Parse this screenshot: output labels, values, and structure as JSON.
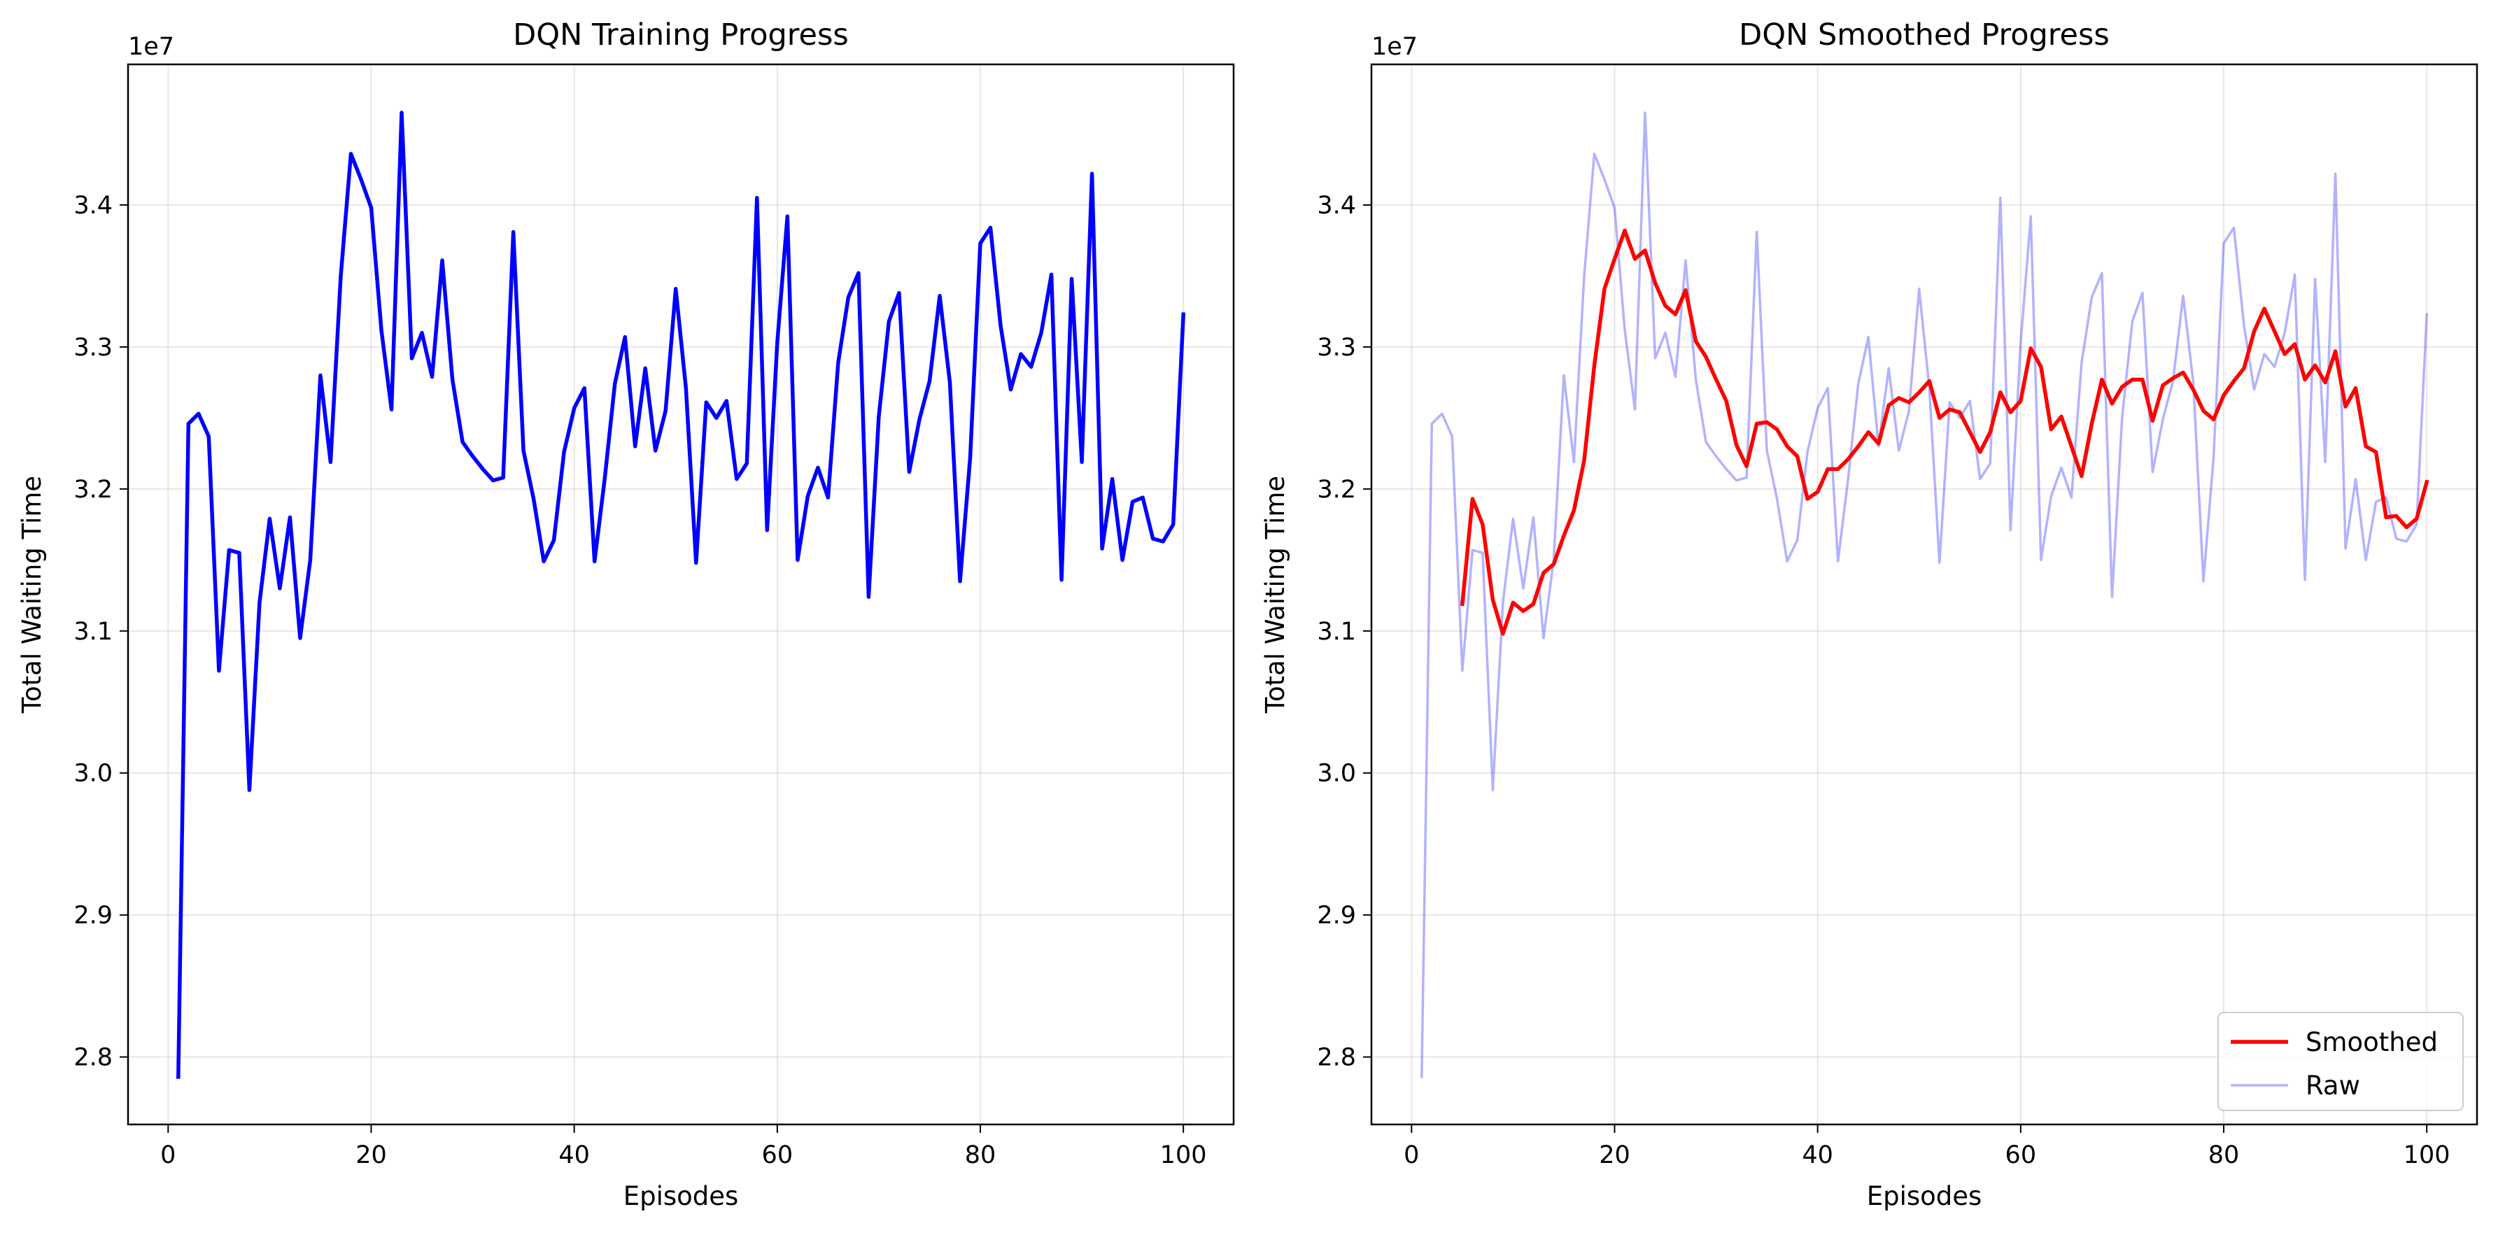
{
  "chart_data": [
    {
      "type": "line",
      "title": "DQN Training Progress",
      "xlabel": "Episodes",
      "ylabel": "Total Waiting Time",
      "offset_label": "1e7",
      "xlim": [
        -3.95,
        104.95
      ],
      "ylim": [
        2.7525,
        3.499
      ],
      "xticks": [
        0,
        20,
        40,
        60,
        80,
        100
      ],
      "xtick_labels": [
        "0",
        "20",
        "40",
        "60",
        "80",
        "100"
      ],
      "yticks": [
        2.8,
        2.9,
        3.0,
        3.1,
        3.2,
        3.3,
        3.4
      ],
      "ytick_labels": [
        "2.8",
        "2.9",
        "3.0",
        "3.1",
        "3.2",
        "3.3",
        "3.4"
      ],
      "grid": true,
      "series": [
        {
          "color": "#0000ff",
          "x": [
            1,
            2,
            3,
            4,
            5,
            6,
            7,
            8,
            9,
            10,
            11,
            12,
            13,
            14,
            15,
            16,
            17,
            18,
            19,
            20,
            21,
            22,
            23,
            24,
            25,
            26,
            27,
            28,
            29,
            30,
            31,
            32,
            33,
            34,
            35,
            36,
            37,
            38,
            39,
            40,
            41,
            42,
            43,
            44,
            45,
            46,
            47,
            48,
            49,
            50,
            51,
            52,
            53,
            54,
            55,
            56,
            57,
            58,
            59,
            60,
            61,
            62,
            63,
            64,
            65,
            66,
            67,
            68,
            69,
            70,
            71,
            72,
            73,
            74,
            75,
            76,
            77,
            78,
            79,
            80,
            81,
            82,
            83,
            84,
            85,
            86,
            87,
            88,
            89,
            90,
            91,
            92,
            93,
            94,
            95,
            96,
            97,
            98,
            99,
            100
          ],
          "y": [
            2.786,
            3.246,
            3.253,
            3.237,
            3.072,
            3.157,
            3.155,
            2.988,
            3.12,
            3.179,
            3.13,
            3.18,
            3.095,
            3.15,
            3.28,
            3.219,
            3.35,
            3.436,
            3.418,
            3.398,
            3.312,
            3.256,
            3.465,
            3.292,
            3.31,
            3.279,
            3.361,
            3.277,
            3.233,
            3.223,
            3.214,
            3.206,
            3.208,
            3.381,
            3.227,
            3.193,
            3.149,
            3.164,
            3.226,
            3.257,
            3.271,
            3.149,
            3.207,
            3.274,
            3.307,
            3.23,
            3.285,
            3.227,
            3.255,
            3.341,
            3.271,
            3.148,
            3.261,
            3.25,
            3.262,
            3.207,
            3.218,
            3.405,
            3.171,
            3.303,
            3.392,
            3.15,
            3.195,
            3.215,
            3.194,
            3.289,
            3.335,
            3.352,
            3.124,
            3.251,
            3.318,
            3.338,
            3.212,
            3.249,
            3.276,
            3.336,
            3.275,
            3.135,
            3.222,
            3.373,
            3.384,
            3.315,
            3.27,
            3.295,
            3.286,
            3.31,
            3.351,
            3.136,
            3.348,
            3.219,
            3.422,
            3.158,
            3.207,
            3.15,
            3.191,
            3.194,
            3.165,
            3.163,
            3.175,
            3.323
          ]
        }
      ]
    },
    {
      "type": "line",
      "title": "DQN Smoothed Progress",
      "xlabel": "Episodes",
      "ylabel": "Total Waiting Time",
      "offset_label": "1e7",
      "xlim": [
        -3.95,
        104.95
      ],
      "ylim": [
        2.7525,
        3.499
      ],
      "xticks": [
        0,
        20,
        40,
        60,
        80,
        100
      ],
      "xtick_labels": [
        "0",
        "20",
        "40",
        "60",
        "80",
        "100"
      ],
      "yticks": [
        2.8,
        2.9,
        3.0,
        3.1,
        3.2,
        3.3,
        3.4
      ],
      "ytick_labels": [
        "2.8",
        "2.9",
        "3.0",
        "3.1",
        "3.2",
        "3.3",
        "3.4"
      ],
      "grid": true,
      "legend": "lower-right",
      "series": [
        {
          "name": "Raw",
          "color": "#0000ff",
          "opacity": 0.3,
          "x": [
            1,
            2,
            3,
            4,
            5,
            6,
            7,
            8,
            9,
            10,
            11,
            12,
            13,
            14,
            15,
            16,
            17,
            18,
            19,
            20,
            21,
            22,
            23,
            24,
            25,
            26,
            27,
            28,
            29,
            30,
            31,
            32,
            33,
            34,
            35,
            36,
            37,
            38,
            39,
            40,
            41,
            42,
            43,
            44,
            45,
            46,
            47,
            48,
            49,
            50,
            51,
            52,
            53,
            54,
            55,
            56,
            57,
            58,
            59,
            60,
            61,
            62,
            63,
            64,
            65,
            66,
            67,
            68,
            69,
            70,
            71,
            72,
            73,
            74,
            75,
            76,
            77,
            78,
            79,
            80,
            81,
            82,
            83,
            84,
            85,
            86,
            87,
            88,
            89,
            90,
            91,
            92,
            93,
            94,
            95,
            96,
            97,
            98,
            99,
            100
          ],
          "y": [
            2.786,
            3.246,
            3.253,
            3.237,
            3.072,
            3.157,
            3.155,
            2.988,
            3.12,
            3.179,
            3.13,
            3.18,
            3.095,
            3.15,
            3.28,
            3.219,
            3.35,
            3.436,
            3.418,
            3.398,
            3.312,
            3.256,
            3.465,
            3.292,
            3.31,
            3.279,
            3.361,
            3.277,
            3.233,
            3.223,
            3.214,
            3.206,
            3.208,
            3.381,
            3.227,
            3.193,
            3.149,
            3.164,
            3.226,
            3.257,
            3.271,
            3.149,
            3.207,
            3.274,
            3.307,
            3.23,
            3.285,
            3.227,
            3.255,
            3.341,
            3.271,
            3.148,
            3.261,
            3.25,
            3.262,
            3.207,
            3.218,
            3.405,
            3.171,
            3.303,
            3.392,
            3.15,
            3.195,
            3.215,
            3.194,
            3.289,
            3.335,
            3.352,
            3.124,
            3.251,
            3.318,
            3.338,
            3.212,
            3.249,
            3.276,
            3.336,
            3.275,
            3.135,
            3.222,
            3.373,
            3.384,
            3.315,
            3.27,
            3.295,
            3.286,
            3.31,
            3.351,
            3.136,
            3.348,
            3.219,
            3.422,
            3.158,
            3.207,
            3.15,
            3.191,
            3.194,
            3.165,
            3.163,
            3.175,
            3.323
          ]
        },
        {
          "name": "Smoothed",
          "color": "#ff0000",
          "opacity": 1,
          "x": [
            5,
            6,
            7,
            8,
            9,
            10,
            11,
            12,
            13,
            14,
            15,
            16,
            17,
            18,
            19,
            20,
            21,
            22,
            23,
            24,
            25,
            26,
            27,
            28,
            29,
            30,
            31,
            32,
            33,
            34,
            35,
            36,
            37,
            38,
            39,
            40,
            41,
            42,
            43,
            44,
            45,
            46,
            47,
            48,
            49,
            50,
            51,
            52,
            53,
            54,
            55,
            56,
            57,
            58,
            59,
            60,
            61,
            62,
            63,
            64,
            65,
            66,
            67,
            68,
            69,
            70,
            71,
            72,
            73,
            74,
            75,
            76,
            77,
            78,
            79,
            80,
            81,
            82,
            83,
            84,
            85,
            86,
            87,
            88,
            89,
            90,
            91,
            92,
            93,
            94,
            95,
            96,
            97,
            98,
            99,
            100
          ],
          "y": [
            3.119,
            3.193,
            3.175,
            3.122,
            3.098,
            3.12,
            3.114,
            3.119,
            3.141,
            3.147,
            3.167,
            3.185,
            3.22,
            3.287,
            3.341,
            3.362,
            3.382,
            3.362,
            3.368,
            3.345,
            3.329,
            3.323,
            3.34,
            3.304,
            3.293,
            3.277,
            3.262,
            3.231,
            3.216,
            3.246,
            3.247,
            3.242,
            3.23,
            3.223,
            3.193,
            3.198,
            3.214,
            3.214,
            3.221,
            3.23,
            3.24,
            3.232,
            3.259,
            3.264,
            3.261,
            3.268,
            3.276,
            3.25,
            3.256,
            3.254,
            3.24,
            3.226,
            3.24,
            3.268,
            3.254,
            3.262,
            3.299,
            3.286,
            3.242,
            3.251,
            3.23,
            3.209,
            3.246,
            3.277,
            3.26,
            3.272,
            3.277,
            3.277,
            3.248,
            3.273,
            3.278,
            3.282,
            3.27,
            3.255,
            3.249,
            3.266,
            3.276,
            3.285,
            3.311,
            3.327,
            3.311,
            3.295,
            3.302,
            3.277,
            3.287,
            3.275,
            3.297,
            3.258,
            3.271,
            3.23,
            3.226,
            3.18,
            3.181,
            3.173,
            3.179,
            3.205
          ]
        }
      ]
    }
  ]
}
